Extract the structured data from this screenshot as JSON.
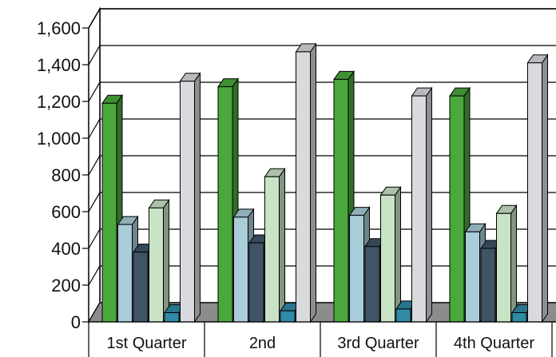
{
  "chart_data": {
    "type": "bar",
    "title": "",
    "xlabel": "",
    "ylabel": "",
    "categories": [
      "1st Quarter",
      "2nd",
      "3rd Quarter",
      "4th Quarter"
    ],
    "ylim": [
      0,
      1600
    ],
    "yticks": [
      0,
      200,
      400,
      600,
      800,
      1000,
      1200,
      1400,
      1600
    ],
    "ytick_labels": [
      "0",
      "200",
      "400",
      "600",
      "800",
      "1,000",
      "1,200",
      "1,400",
      "1,600"
    ],
    "grid": true,
    "legend": "none",
    "series": [
      {
        "color": "#4aa83c",
        "values": [
          1190,
          1280,
          1320,
          1230
        ]
      },
      {
        "color": "#a9cdd9",
        "values": [
          530,
          570,
          580,
          490
        ]
      },
      {
        "color": "#3f5566",
        "values": [
          380,
          430,
          410,
          400
        ]
      },
      {
        "color": "#c9e3c6",
        "values": [
          620,
          790,
          690,
          590
        ]
      },
      {
        "color": "#2f8aa6",
        "values": [
          50,
          60,
          70,
          50
        ]
      },
      {
        "color": "#d8dadd",
        "values": [
          1310,
          1470,
          1230,
          1410
        ]
      }
    ]
  }
}
